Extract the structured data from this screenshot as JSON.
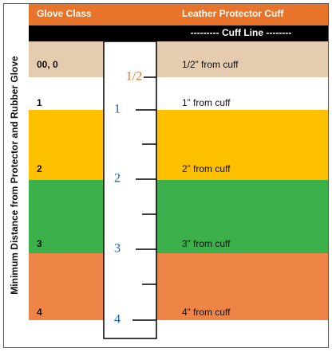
{
  "side_label": "Minimum Distance from Protector and Rubber Glove",
  "header": {
    "columns": [
      "Glove Class",
      "Leather Protector Cuff"
    ],
    "cuff_line": "---------  Cuff Line --------"
  },
  "rows": [
    {
      "glove_class": "00, 0",
      "distance": "1/2” from cuff"
    },
    {
      "glove_class": "1",
      "distance": "1” from cuff"
    },
    {
      "glove_class": "2",
      "distance": "2” from cuff"
    },
    {
      "glove_class": "3",
      "distance": "3” from cuff"
    },
    {
      "glove_class": "4",
      "distance": "4” from cuff"
    }
  ],
  "ruler": {
    "labels": [
      "1/2",
      "1",
      "2",
      "3",
      "4"
    ]
  }
}
